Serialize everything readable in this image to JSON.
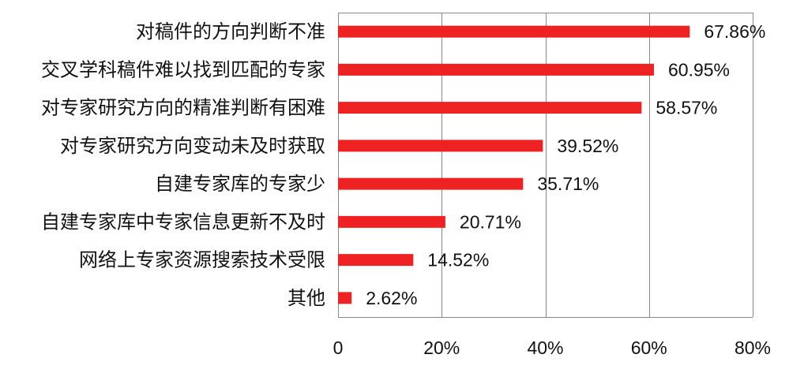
{
  "chart_data": {
    "type": "bar",
    "orientation": "horizontal",
    "categories": [
      "对稿件的方向判断不准",
      "交叉学科稿件难以找到匹配的专家",
      "对专家研究方向的精准判断有困难",
      "对专家研究方向变动未及时获取",
      "自建专家库的专家少",
      "自建专家库中专家信息更新不及时",
      "网络上专家资源搜索技术受限",
      "其他"
    ],
    "values": [
      67.86,
      60.95,
      58.57,
      39.52,
      35.71,
      20.71,
      14.52,
      2.62
    ],
    "value_labels": [
      "67.86%",
      "60.95%",
      "58.57%",
      "39.52%",
      "35.71%",
      "20.71%",
      "14.52%",
      "2.62%"
    ],
    "xlim": [
      0,
      80
    ],
    "xticks": [
      0,
      20,
      40,
      60,
      80
    ],
    "xtick_labels": [
      "0",
      "20%",
      "40%",
      "60%",
      "80%"
    ],
    "grid": "vertical",
    "bar_color": "#ee2222",
    "grid_color": "#888888"
  }
}
